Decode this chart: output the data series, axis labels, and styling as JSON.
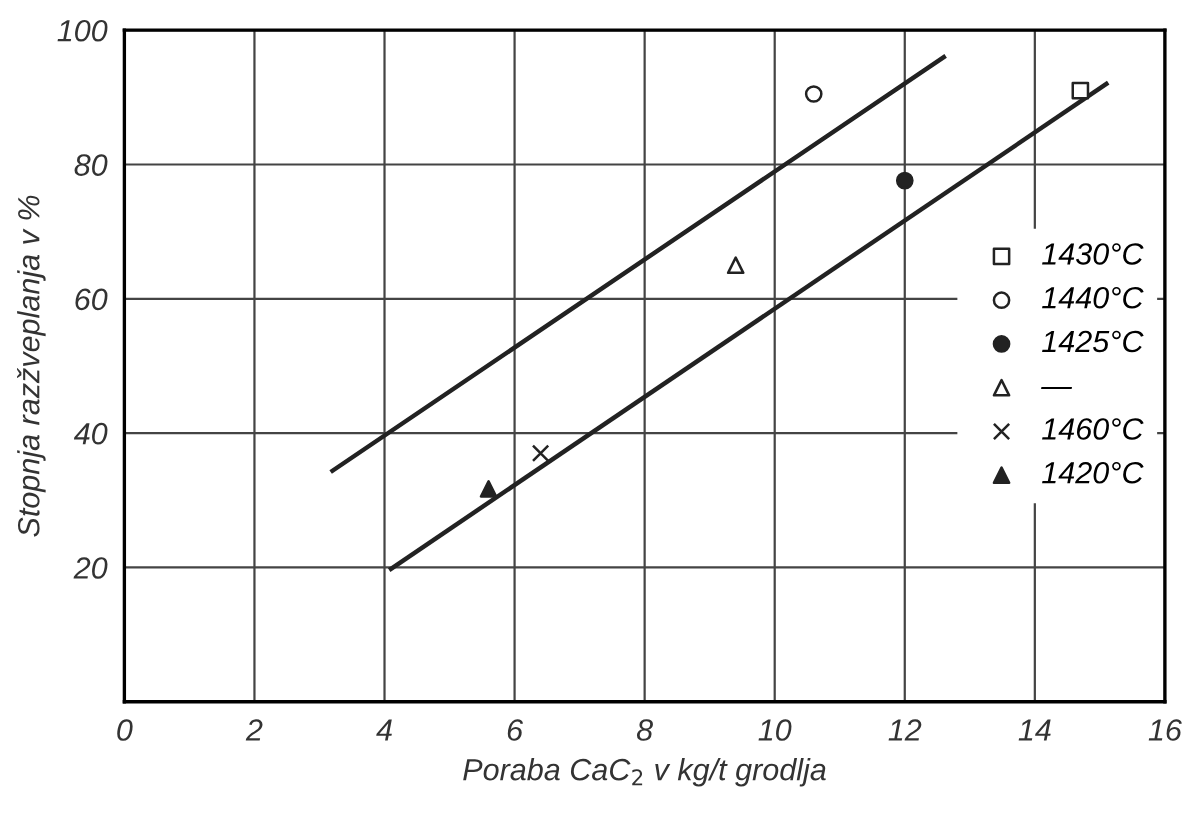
{
  "chart_data": {
    "type": "scatter",
    "xlabel": "Poraba CaC$_{2}$ v kg/t grodlja",
    "ylabel": "Stopnja razžveplanja v %",
    "xlim": [
      0,
      16
    ],
    "ylim": [
      0,
      100
    ],
    "xticks": [
      0,
      2,
      4,
      6,
      8,
      10,
      12,
      14,
      16
    ],
    "yticks": [
      20,
      40,
      60,
      80,
      100
    ],
    "grid": true,
    "legend": "center right",
    "series": [
      {
        "name": "1430°C",
        "marker": "square",
        "color": "#ffffff",
        "x": [
          14.7
        ],
        "values": [
          91
        ]
      },
      {
        "name": "1440°C",
        "marker": "circle",
        "color": "#ffffff",
        "x": [
          10.6
        ],
        "values": [
          90.5
        ]
      },
      {
        "name": "1425°C",
        "marker": "circle",
        "color": "#222222",
        "x": [
          12.0
        ],
        "values": [
          77.6
        ]
      },
      {
        "name": "—",
        "marker": "triangle",
        "color": "#ffffff",
        "x": [
          9.4
        ],
        "values": [
          65
        ]
      },
      {
        "name": "1460°C",
        "marker": "cross",
        "color": "#222222",
        "x": [
          6.4
        ],
        "values": [
          37
        ]
      },
      {
        "name": "1420°C",
        "marker": "triangle",
        "color": "#222222",
        "x": [
          5.6
        ],
        "values": [
          31.7
        ]
      },
      {
        "type": "line",
        "color": "#222222",
        "x": [
          3.2,
          12.6
        ],
        "values": [
          34.4,
          96
        ]
      },
      {
        "type": "line",
        "color": "#222222",
        "x": [
          4.1,
          15.1
        ],
        "values": [
          19.8,
          92
        ]
      }
    ]
  }
}
